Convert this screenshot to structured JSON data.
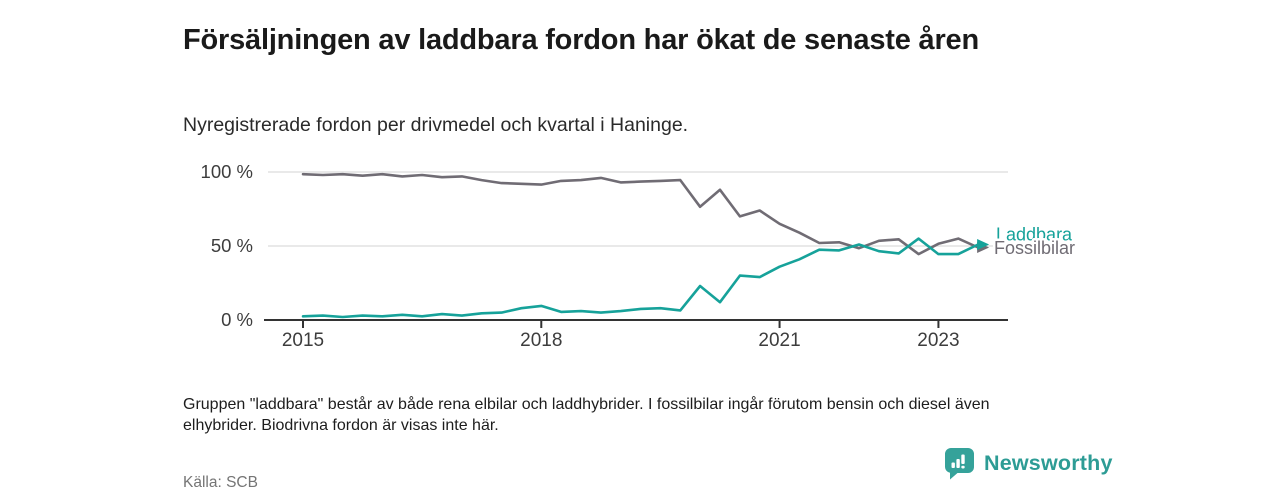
{
  "header": {
    "title": "Försäljningen av laddbara fordon har ökat de senaste åren",
    "subtitle": "Nyregistrerade fordon per drivmedel och kvartal i Haninge."
  },
  "chart_data": {
    "type": "line",
    "title": "Nyregistrerade fordon per drivmedel och kvartal i Haninge",
    "xlabel": "",
    "ylabel": "",
    "ylim": [
      0,
      100
    ],
    "grid": true,
    "legend_position": "end-of-line-right",
    "x": [
      "2015 Q1",
      "2015 Q2",
      "2015 Q3",
      "2015 Q4",
      "2016 Q1",
      "2016 Q2",
      "2016 Q3",
      "2016 Q4",
      "2017 Q1",
      "2017 Q2",
      "2017 Q3",
      "2017 Q4",
      "2018 Q1",
      "2018 Q2",
      "2018 Q3",
      "2018 Q4",
      "2019 Q1",
      "2019 Q2",
      "2019 Q3",
      "2019 Q4",
      "2020 Q1",
      "2020 Q2",
      "2020 Q3",
      "2020 Q4",
      "2021 Q1",
      "2021 Q2",
      "2021 Q3",
      "2021 Q4",
      "2022 Q1",
      "2022 Q2",
      "2022 Q3",
      "2022 Q4",
      "2023 Q1",
      "2023 Q2",
      "2023 Q3"
    ],
    "series": [
      {
        "name": "Fossilbilar",
        "color": "#706c74",
        "values": [
          98.5,
          98,
          98.5,
          97.5,
          98.5,
          97,
          98,
          96.5,
          97,
          94.5,
          92.5,
          92,
          91.5,
          94,
          94.5,
          96,
          93,
          93.5,
          94,
          94.5,
          76.5,
          88,
          70,
          74,
          65,
          59,
          52,
          52.5,
          48.5,
          53.5,
          54.5,
          44.5,
          51.5,
          55,
          49
        ]
      },
      {
        "name": "Laddbara",
        "color": "#16a29a",
        "values": [
          2.5,
          3,
          2,
          3,
          2.5,
          3.5,
          2.5,
          4,
          3,
          4.5,
          5,
          8,
          9.5,
          5.5,
          6,
          5,
          6,
          7.5,
          8,
          6.5,
          23,
          12,
          30,
          29,
          36,
          41,
          47.5,
          47,
          51,
          46.5,
          45,
          55,
          44.5,
          44.5,
          51
        ]
      }
    ],
    "yticks": [
      {
        "value": 0,
        "label": "0 %"
      },
      {
        "value": 50,
        "label": "50 %"
      },
      {
        "value": 100,
        "label": "100 %"
      }
    ],
    "xticks": [
      {
        "index": 0,
        "label": "2015"
      },
      {
        "index": 12,
        "label": "2018"
      },
      {
        "index": 24,
        "label": "2021"
      },
      {
        "index": 32,
        "label": "2023"
      }
    ]
  },
  "footnote": "Gruppen \"laddbara\" består av både rena elbilar och laddhybrider. I fossilbilar ingår förutom bensin och diesel även elhybrider. Biodrivna fordon är visas inte här.",
  "source": "Källa: SCB",
  "brand": {
    "name": "Newsworthy",
    "color": "#2d9c95",
    "logo": "bar-chart-speech-bubble"
  },
  "colors": {
    "grid": "#dcdcdc",
    "axis": "#333333",
    "tick_text": "#3d3d3d",
    "fossil_line": "#706c74",
    "laddbara_line": "#16a29a"
  }
}
